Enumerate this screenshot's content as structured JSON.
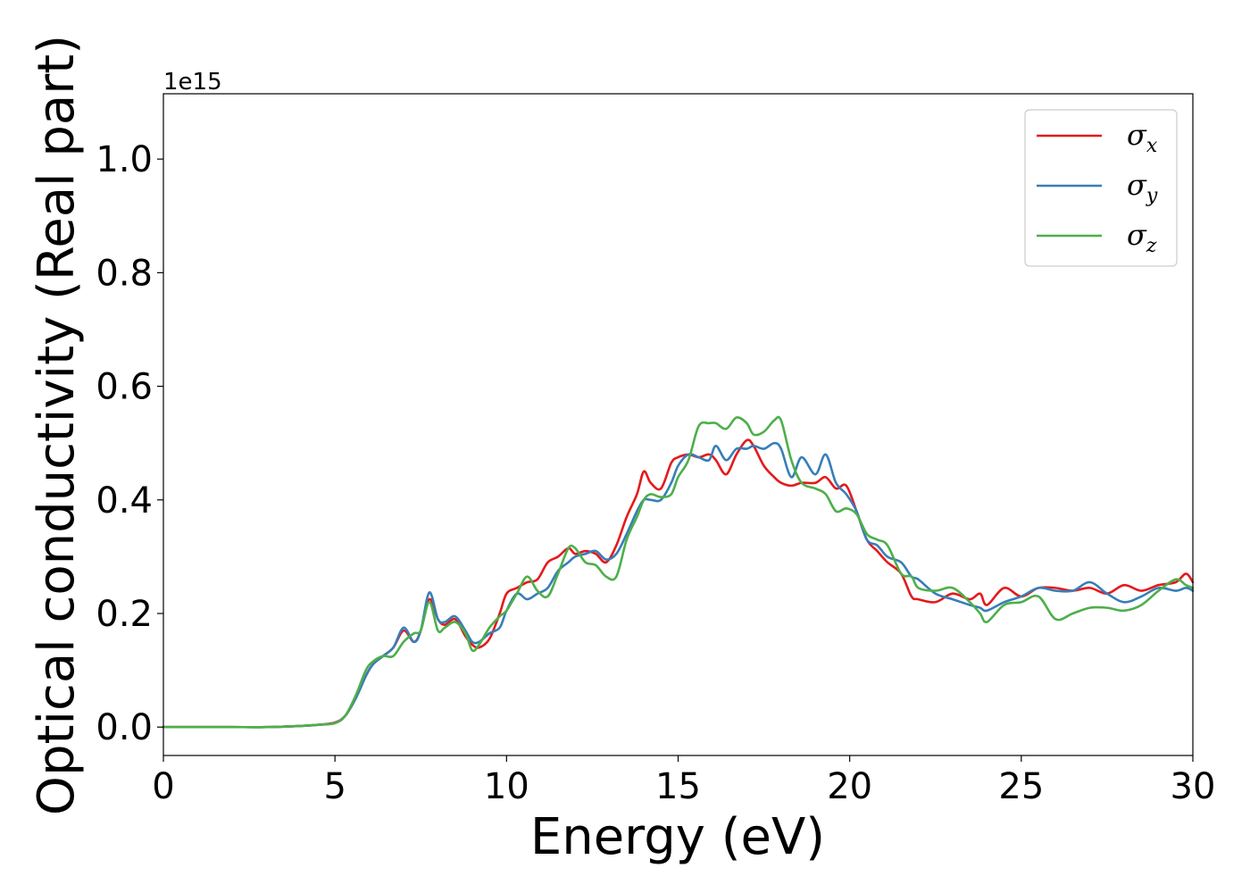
{
  "chart_data": {
    "type": "line",
    "xlabel": "Energy (eV)",
    "ylabel": "Optical conductivity (Real part)",
    "y_offset_label": "1e15",
    "xlim": [
      0,
      30
    ],
    "ylim": [
      -0.05,
      1.115
    ],
    "x_ticks": [
      0,
      5,
      10,
      15,
      20,
      25,
      30
    ],
    "x_tick_labels": [
      "0",
      "5",
      "10",
      "15",
      "20",
      "25",
      "30"
    ],
    "y_ticks": [
      0.0,
      0.2,
      0.4,
      0.6,
      0.8,
      1.0
    ],
    "y_tick_labels": [
      "0.0",
      "0.2",
      "0.4",
      "0.6",
      "0.8",
      "1.0"
    ],
    "grid": false,
    "legend_position": "top-right",
    "series": [
      {
        "name": "σx",
        "symbol": "σ",
        "subscript": "x",
        "color": "#e41a1c",
        "x": [
          0,
          1,
          2,
          3,
          4,
          4.5,
          5,
          5.3,
          5.6,
          5.9,
          6.1,
          6.4,
          6.7,
          7.0,
          7.3,
          7.5,
          7.75,
          8.0,
          8.2,
          8.5,
          8.8,
          9.0,
          9.2,
          9.5,
          9.8,
          10.0,
          10.3,
          10.6,
          10.9,
          11.2,
          11.5,
          11.8,
          12.0,
          12.3,
          12.6,
          12.9,
          13.2,
          13.5,
          13.8,
          14.0,
          14.2,
          14.5,
          14.8,
          15.0,
          15.3,
          15.6,
          15.9,
          16.1,
          16.4,
          16.7,
          17.0,
          17.2,
          17.5,
          17.8,
          18.0,
          18.3,
          18.6,
          19.0,
          19.3,
          19.6,
          19.9,
          20.2,
          20.5,
          20.8,
          21.1,
          21.5,
          21.8,
          22.0,
          22.5,
          23.0,
          23.5,
          23.8,
          24.0,
          24.5,
          25.0,
          25.5,
          26.0,
          26.5,
          27.0,
          27.5,
          28.0,
          28.5,
          29.0,
          29.5,
          29.8,
          30.0
        ],
        "y": [
          0.0,
          0.0,
          0.0,
          0.0,
          0.002,
          0.004,
          0.008,
          0.02,
          0.05,
          0.09,
          0.11,
          0.125,
          0.14,
          0.17,
          0.15,
          0.17,
          0.225,
          0.19,
          0.18,
          0.19,
          0.16,
          0.145,
          0.14,
          0.155,
          0.2,
          0.235,
          0.245,
          0.255,
          0.26,
          0.29,
          0.3,
          0.315,
          0.305,
          0.31,
          0.305,
          0.29,
          0.32,
          0.37,
          0.41,
          0.45,
          0.43,
          0.42,
          0.465,
          0.475,
          0.48,
          0.475,
          0.48,
          0.47,
          0.445,
          0.48,
          0.505,
          0.495,
          0.46,
          0.44,
          0.43,
          0.425,
          0.43,
          0.43,
          0.44,
          0.42,
          0.425,
          0.38,
          0.33,
          0.31,
          0.29,
          0.27,
          0.23,
          0.225,
          0.22,
          0.235,
          0.225,
          0.235,
          0.215,
          0.245,
          0.23,
          0.245,
          0.245,
          0.24,
          0.245,
          0.235,
          0.25,
          0.24,
          0.25,
          0.255,
          0.27,
          0.255
        ]
      },
      {
        "name": "σy",
        "symbol": "σ",
        "subscript": "y",
        "color": "#377eb8",
        "x": [
          0,
          1,
          2,
          3,
          4,
          4.5,
          5,
          5.3,
          5.6,
          5.9,
          6.1,
          6.4,
          6.7,
          7.0,
          7.3,
          7.5,
          7.75,
          8.0,
          8.2,
          8.5,
          8.8,
          9.0,
          9.2,
          9.5,
          9.8,
          10.0,
          10.3,
          10.6,
          10.9,
          11.2,
          11.5,
          11.8,
          12.0,
          12.3,
          12.6,
          12.9,
          13.2,
          13.5,
          13.8,
          14.0,
          14.2,
          14.5,
          14.8,
          15.0,
          15.3,
          15.6,
          15.9,
          16.1,
          16.4,
          16.7,
          17.0,
          17.2,
          17.5,
          17.8,
          18.0,
          18.3,
          18.6,
          19.0,
          19.3,
          19.6,
          19.9,
          20.2,
          20.5,
          20.8,
          21.1,
          21.5,
          21.8,
          22.0,
          22.5,
          23.0,
          23.5,
          23.8,
          24.0,
          24.5,
          25.0,
          25.5,
          26.0,
          26.5,
          27.0,
          27.5,
          28.0,
          28.5,
          29.0,
          29.5,
          29.8,
          30.0
        ],
        "y": [
          0.0,
          0.0,
          0.0,
          0.0,
          0.002,
          0.004,
          0.007,
          0.02,
          0.05,
          0.09,
          0.11,
          0.125,
          0.14,
          0.175,
          0.15,
          0.17,
          0.237,
          0.19,
          0.185,
          0.195,
          0.17,
          0.15,
          0.15,
          0.165,
          0.175,
          0.205,
          0.235,
          0.225,
          0.235,
          0.245,
          0.275,
          0.29,
          0.3,
          0.305,
          0.31,
          0.295,
          0.305,
          0.34,
          0.38,
          0.4,
          0.4,
          0.4,
          0.43,
          0.46,
          0.48,
          0.475,
          0.47,
          0.495,
          0.47,
          0.49,
          0.49,
          0.495,
          0.49,
          0.5,
          0.49,
          0.44,
          0.475,
          0.445,
          0.48,
          0.43,
          0.41,
          0.38,
          0.33,
          0.32,
          0.3,
          0.29,
          0.265,
          0.26,
          0.235,
          0.225,
          0.215,
          0.21,
          0.205,
          0.22,
          0.23,
          0.245,
          0.24,
          0.24,
          0.255,
          0.235,
          0.22,
          0.23,
          0.245,
          0.24,
          0.245,
          0.24
        ]
      },
      {
        "name": "σz",
        "symbol": "σ",
        "subscript": "z",
        "color": "#4daf4a",
        "x": [
          0,
          1,
          2,
          3,
          4,
          4.5,
          5,
          5.3,
          5.6,
          5.9,
          6.1,
          6.4,
          6.7,
          7.0,
          7.3,
          7.5,
          7.75,
          8.0,
          8.2,
          8.5,
          8.8,
          9.0,
          9.2,
          9.5,
          9.8,
          10.0,
          10.3,
          10.6,
          10.9,
          11.2,
          11.5,
          11.8,
          12.0,
          12.3,
          12.6,
          12.9,
          13.2,
          13.5,
          13.8,
          14.0,
          14.2,
          14.5,
          14.8,
          15.0,
          15.3,
          15.6,
          15.9,
          16.1,
          16.4,
          16.7,
          17.0,
          17.2,
          17.5,
          17.8,
          18.0,
          18.3,
          18.6,
          19.0,
          19.3,
          19.6,
          19.9,
          20.2,
          20.5,
          20.8,
          21.1,
          21.5,
          21.8,
          22.0,
          22.5,
          23.0,
          23.5,
          23.8,
          24.0,
          24.5,
          25.0,
          25.5,
          26.0,
          26.5,
          27.0,
          27.5,
          28.0,
          28.5,
          29.0,
          29.5,
          29.8,
          30.0
        ],
        "y": [
          0.0,
          0.0,
          0.0,
          0.0,
          0.002,
          0.004,
          0.007,
          0.02,
          0.055,
          0.1,
          0.115,
          0.125,
          0.125,
          0.15,
          0.165,
          0.17,
          0.22,
          0.17,
          0.175,
          0.185,
          0.165,
          0.135,
          0.145,
          0.175,
          0.195,
          0.205,
          0.235,
          0.265,
          0.24,
          0.23,
          0.27,
          0.315,
          0.315,
          0.29,
          0.285,
          0.265,
          0.265,
          0.33,
          0.37,
          0.4,
          0.41,
          0.405,
          0.41,
          0.44,
          0.47,
          0.53,
          0.535,
          0.535,
          0.525,
          0.545,
          0.535,
          0.515,
          0.52,
          0.54,
          0.54,
          0.47,
          0.43,
          0.42,
          0.41,
          0.38,
          0.385,
          0.375,
          0.34,
          0.33,
          0.32,
          0.27,
          0.265,
          0.245,
          0.24,
          0.245,
          0.22,
          0.2,
          0.185,
          0.215,
          0.22,
          0.23,
          0.19,
          0.2,
          0.21,
          0.21,
          0.205,
          0.215,
          0.24,
          0.26,
          0.25,
          0.245
        ]
      }
    ]
  }
}
